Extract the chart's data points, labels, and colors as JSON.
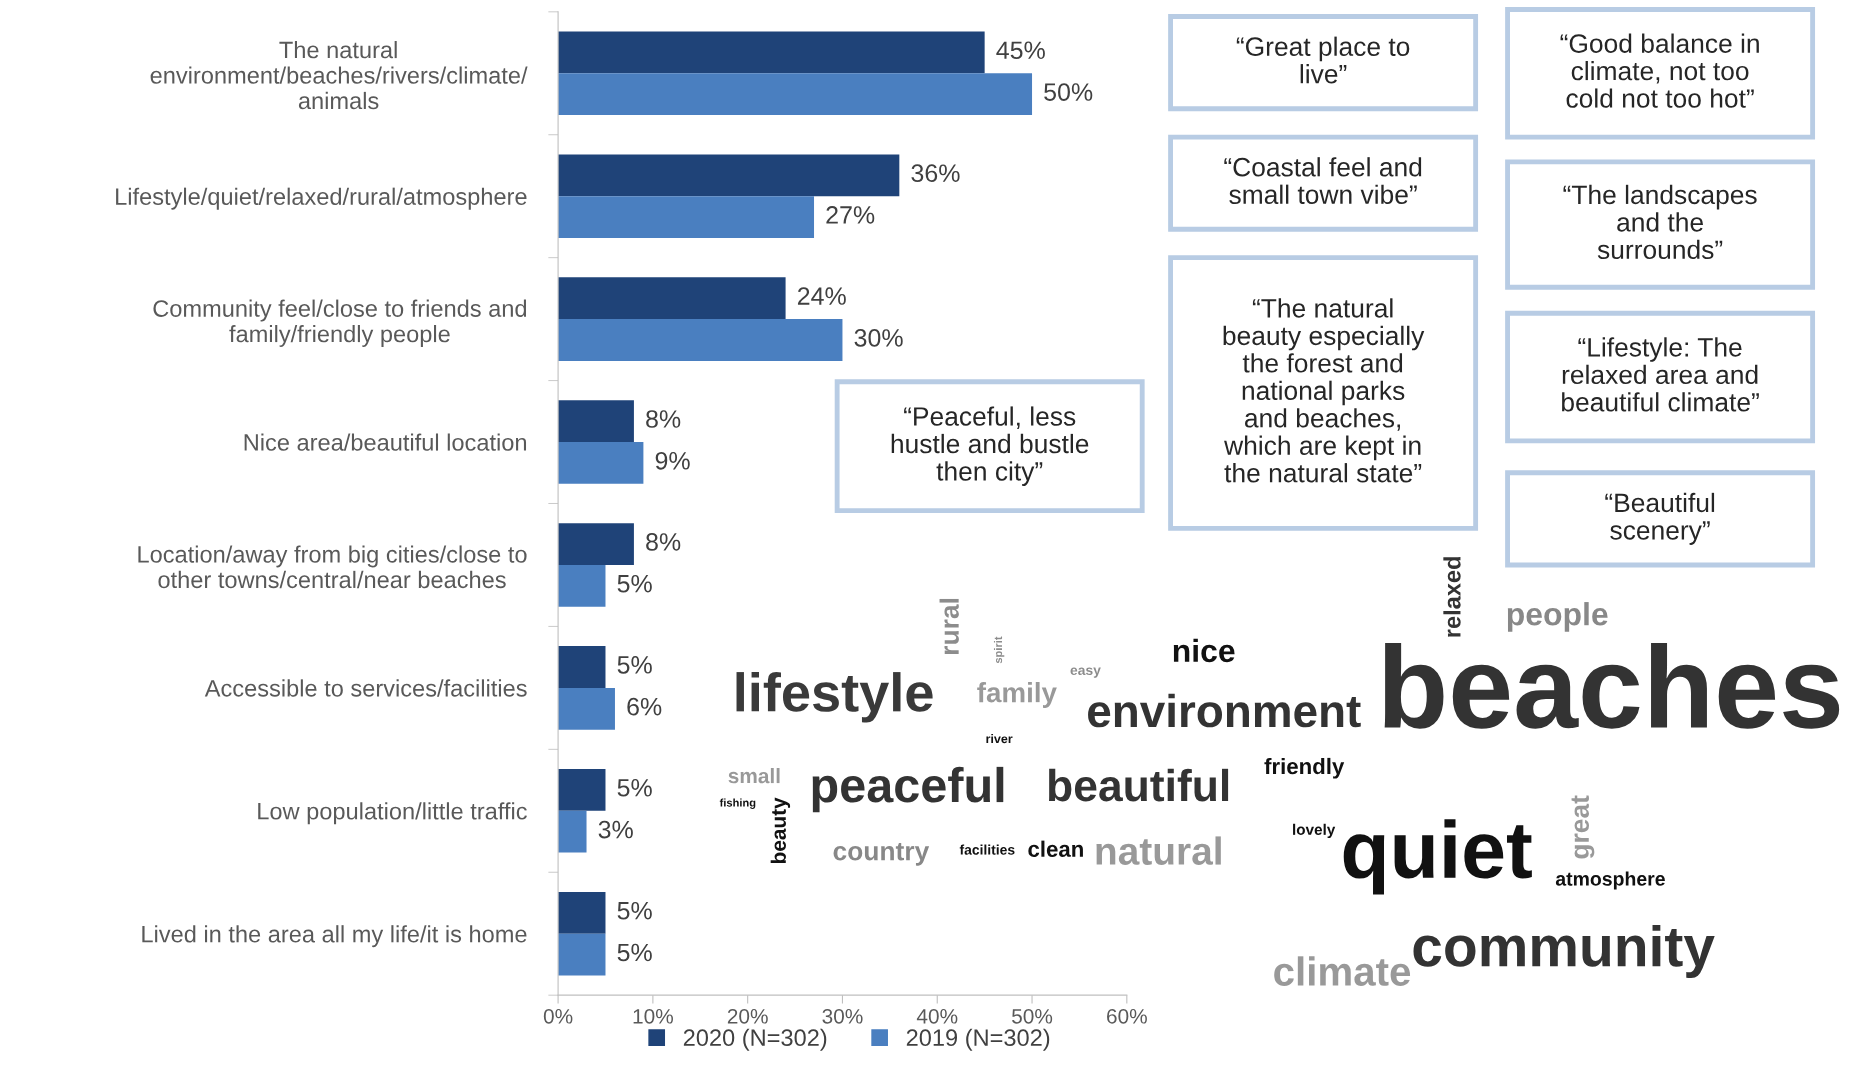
{
  "chart_data": {
    "type": "bar",
    "orientation": "horizontal",
    "categories": [
      "The natural\nenvironment/beaches/rivers/climate/\nanimals",
      "Lifestyle/quiet/relaxed/rural/atmosphere",
      "Community feel/close to friends and\nfamily/friendly people",
      "Nice area/beautiful location",
      "Location/away from big cities/close to\nother towns/central/near beaches",
      "Accessible to services/facilities",
      "Low population/little traffic",
      "Lived in the area all my life/it is home"
    ],
    "series": [
      {
        "name": "2020 (N=302)",
        "color": "#1f4378",
        "values": [
          45,
          36,
          24,
          8,
          8,
          5,
          5,
          5
        ],
        "value_labels": [
          "45%",
          "36%",
          "24%",
          "8%",
          "8%",
          "5%",
          "5%",
          "5%"
        ]
      },
      {
        "name": "2019 (N=302)",
        "color": "#4a7fc0",
        "values": [
          50,
          27,
          30,
          9,
          5,
          6,
          3,
          5
        ],
        "value_labels": [
          "50%",
          "27%",
          "30%",
          "9%",
          "5%",
          "6%",
          "3%",
          "5%"
        ]
      }
    ],
    "xlim": [
      0,
      60
    ],
    "xticks": [
      {
        "value": 0,
        "label": "0%"
      },
      {
        "value": 10,
        "label": "10%"
      },
      {
        "value": 20,
        "label": "20%"
      },
      {
        "value": 30,
        "label": "30%"
      },
      {
        "value": 40,
        "label": "40%"
      },
      {
        "value": 50,
        "label": "50%"
      },
      {
        "value": 60,
        "label": "60%"
      }
    ],
    "grid": false,
    "legend": "bottom",
    "annotations": [
      "“Great place to\nlive”",
      "“Good balance in\nclimate, not too\ncold not too hot”",
      "“Coastal feel and\nsmall town vibe”",
      "“The landscapes\nand the\nsurrounds”",
      "“The natural\nbeauty especially\nthe forest and\nnational parks\nand beaches,\nwhich are kept in\nthe natural state”",
      "“Lifestyle: The\nrelaxed area and\nbeautiful climate”",
      "“Peaceful, less\nhustle and bustle\nthen city”",
      "“Beautiful\nscenery”",
      "lifestyle",
      "rural",
      "spirit",
      "family",
      "easy",
      "nice",
      "environment",
      "river",
      "small",
      "fishing",
      "beauty",
      "peaceful",
      "beautiful",
      "friendly",
      "country",
      "facilities",
      "clean",
      "natural",
      "relaxed",
      "people",
      "beaches",
      "lovely",
      "quiet",
      "great",
      "atmosphere",
      "climate",
      "community"
    ]
  }
}
